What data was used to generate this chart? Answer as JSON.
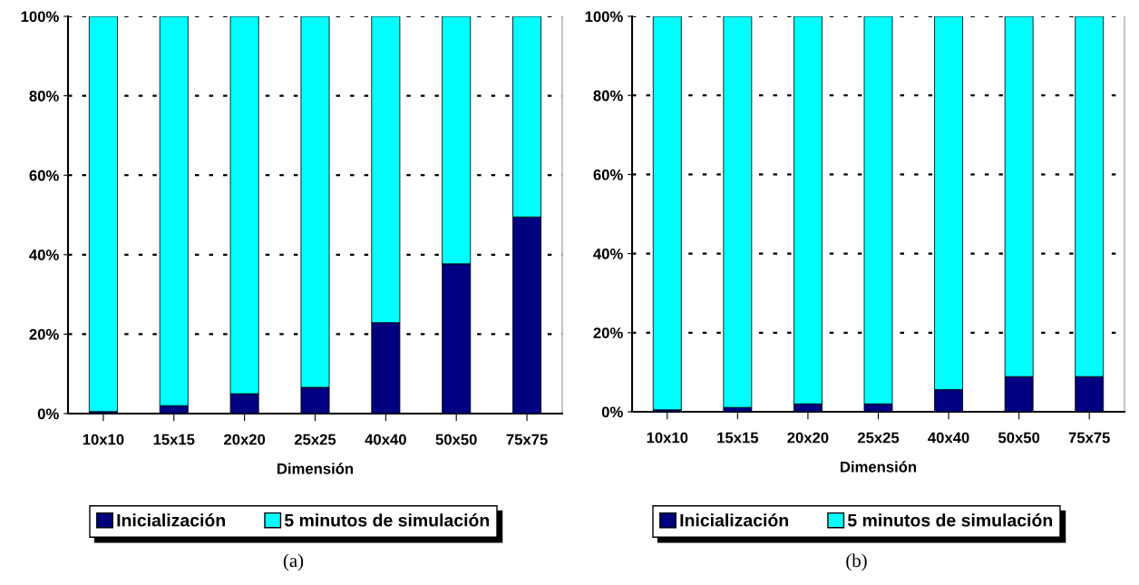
{
  "chart_data": [
    {
      "type": "bar",
      "stacked": true,
      "categories": [
        "10x10",
        "15x15",
        "20x20",
        "25x25",
        "40x40",
        "50x50",
        "75x75"
      ],
      "xlabel": "Dimensión",
      "ylim": [
        0,
        100
      ],
      "yticks": [
        {
          "value": 0,
          "label": "0%"
        },
        {
          "value": 20,
          "label": "20%"
        },
        {
          "value": 40,
          "label": "40%"
        },
        {
          "value": 60,
          "label": "60%"
        },
        {
          "value": 80,
          "label": "80%"
        },
        {
          "value": 100,
          "label": "100%"
        }
      ],
      "grid": "y",
      "legend": "bottom",
      "annotations": [
        "(a)"
      ],
      "series": [
        {
          "name": "Inicialización",
          "color": "#000080",
          "values": [
            0.5,
            2.0,
            5.0,
            6.6,
            22.9,
            37.7,
            49.5
          ]
        },
        {
          "name": "5 minutos de simulación",
          "color": "#00ffff",
          "values": [
            99.5,
            98.0,
            95.0,
            93.4,
            77.1,
            62.3,
            50.5
          ]
        }
      ]
    },
    {
      "type": "bar",
      "stacked": true,
      "categories": [
        "10x10",
        "15x15",
        "20x20",
        "25x25",
        "40x40",
        "50x50",
        "75x75"
      ],
      "xlabel": "Dimensión",
      "ylim": [
        0,
        100
      ],
      "yticks": [
        {
          "value": 0,
          "label": "0%"
        },
        {
          "value": 20,
          "label": "20%"
        },
        {
          "value": 40,
          "label": "40%"
        },
        {
          "value": 60,
          "label": "60%"
        },
        {
          "value": 80,
          "label": "80%"
        },
        {
          "value": 100,
          "label": "100%"
        }
      ],
      "grid": "y",
      "legend": "bottom",
      "annotations": [
        "(b)"
      ],
      "series": [
        {
          "name": "Inicialización",
          "color": "#000080",
          "values": [
            0.5,
            1.1,
            2.0,
            2.0,
            5.6,
            8.9,
            8.9
          ]
        },
        {
          "name": "5 minutos de simulación",
          "color": "#00ffff",
          "values": [
            99.5,
            98.9,
            98.0,
            98.0,
            94.4,
            91.1,
            91.1
          ]
        }
      ]
    }
  ]
}
